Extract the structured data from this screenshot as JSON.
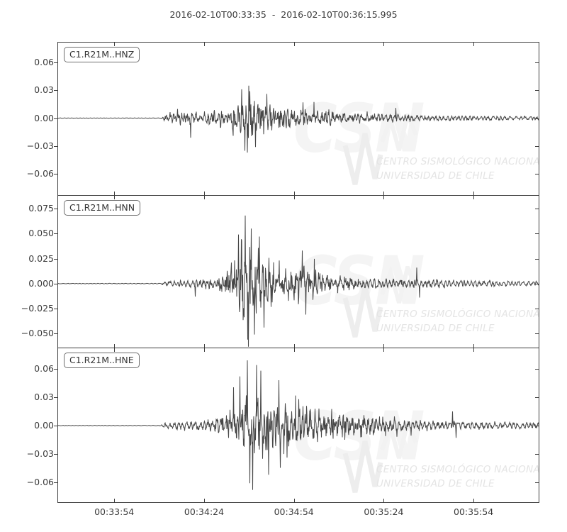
{
  "chart_data": {
    "type": "line",
    "subtype": "seismogram-3-component-waveform",
    "title": "2016-02-10T00:33:35  -  2016-02-10T00:36:15.995",
    "start_time": "2016-02-10T00:33:35",
    "end_time": "2016-02-10T00:36:15.995",
    "duration_s": 161.0,
    "grid": false,
    "trace_color": "#474747",
    "axis_color": "#3d3d3d",
    "x_ticks": [
      {
        "t": 19,
        "label": "00:33:54"
      },
      {
        "t": 49,
        "label": "00:34:24"
      },
      {
        "t": 79,
        "label": "00:34:54"
      },
      {
        "t": 109,
        "label": "00:35:24"
      },
      {
        "t": 139,
        "label": "00:35:54"
      }
    ],
    "watermark": {
      "big_text": "CSN",
      "line1": "CENTRO SISMOLÓGICO NACIONAL",
      "line2": "UNIVERSIDAD DE CHILE"
    },
    "panels": [
      {
        "id": "HNZ",
        "label": "C1.R21M..HNZ",
        "ylim": [
          -0.0826,
          0.0819
        ],
        "yticks": [
          {
            "v": 0.06,
            "label": "0.06"
          },
          {
            "v": 0.03,
            "label": "0.03"
          },
          {
            "v": 0.0,
            "label": "0.00"
          },
          {
            "v": -0.03,
            "label": "−0.03"
          },
          {
            "v": -0.06,
            "label": "−0.06"
          }
        ],
        "seed": 1101,
        "envelope": [
          [
            0,
            0.0004
          ],
          [
            34.5,
            0.0005
          ],
          [
            36,
            0.006
          ],
          [
            39,
            0.0085
          ],
          [
            43,
            0.009
          ],
          [
            47,
            0.0085
          ],
          [
            51,
            0.01
          ],
          [
            54,
            0.012
          ],
          [
            57,
            0.016
          ],
          [
            59,
            0.021
          ],
          [
            61,
            0.028
          ],
          [
            63,
            0.033
          ],
          [
            65,
            0.03
          ],
          [
            67,
            0.027
          ],
          [
            69,
            0.025
          ],
          [
            72,
            0.021
          ],
          [
            75,
            0.017
          ],
          [
            78,
            0.014
          ],
          [
            81,
            0.015
          ],
          [
            84,
            0.012
          ],
          [
            87,
            0.011
          ],
          [
            90,
            0.012
          ],
          [
            93,
            0.01
          ],
          [
            96,
            0.009
          ],
          [
            100,
            0.008
          ],
          [
            105,
            0.007
          ],
          [
            110,
            0.0062
          ],
          [
            115,
            0.0058
          ],
          [
            120,
            0.005
          ],
          [
            128,
            0.0042
          ],
          [
            136,
            0.0038
          ],
          [
            145,
            0.0034
          ],
          [
            153,
            0.0032
          ],
          [
            161,
            0.003
          ]
        ],
        "peaks": [
          {
            "t": 44.5,
            "v": -0.021
          },
          {
            "t": 61.5,
            "v": 0.031
          },
          {
            "t": 62.6,
            "v": -0.035
          },
          {
            "t": 63.4,
            "v": -0.037
          },
          {
            "t": 64.3,
            "v": 0.029
          },
          {
            "t": 66.2,
            "v": -0.031
          },
          {
            "t": 70,
            "v": 0.026
          },
          {
            "t": 82,
            "v": 0.017
          },
          {
            "t": 113,
            "v": 0.011
          }
        ]
      },
      {
        "id": "HNN",
        "label": "C1.R21M..HNN",
        "ylim": [
          -0.064,
          0.0885
        ],
        "yticks": [
          {
            "v": 0.075,
            "label": "0.075"
          },
          {
            "v": 0.05,
            "label": "0.050"
          },
          {
            "v": 0.025,
            "label": "0.025"
          },
          {
            "v": 0.0,
            "label": "0.000"
          },
          {
            "v": -0.025,
            "label": "−0.025"
          },
          {
            "v": -0.05,
            "label": "−0.050"
          }
        ],
        "seed": 2202,
        "envelope": [
          [
            0,
            0.0004
          ],
          [
            34.5,
            0.0005
          ],
          [
            36,
            0.004
          ],
          [
            40,
            0.005
          ],
          [
            44,
            0.0055
          ],
          [
            48,
            0.0065
          ],
          [
            51,
            0.008
          ],
          [
            53,
            0.01
          ],
          [
            55,
            0.014
          ],
          [
            57,
            0.022
          ],
          [
            59,
            0.033
          ],
          [
            61,
            0.045
          ],
          [
            62.5,
            0.053
          ],
          [
            64,
            0.051
          ],
          [
            66,
            0.045
          ],
          [
            68,
            0.04
          ],
          [
            70,
            0.034
          ],
          [
            72,
            0.029
          ],
          [
            74,
            0.026
          ],
          [
            76,
            0.023
          ],
          [
            78,
            0.022
          ],
          [
            80,
            0.024
          ],
          [
            82,
            0.026
          ],
          [
            84,
            0.021
          ],
          [
            86,
            0.018
          ],
          [
            88,
            0.016
          ],
          [
            90,
            0.014
          ],
          [
            93,
            0.012
          ],
          [
            96,
            0.011
          ],
          [
            100,
            0.01
          ],
          [
            104,
            0.0095
          ],
          [
            108,
            0.0085
          ],
          [
            112,
            0.0075
          ],
          [
            116,
            0.007
          ],
          [
            120,
            0.0075
          ],
          [
            124,
            0.007
          ],
          [
            128,
            0.0062
          ],
          [
            134,
            0.0055
          ],
          [
            140,
            0.005
          ],
          [
            147,
            0.0045
          ],
          [
            154,
            0.004
          ],
          [
            161,
            0.0038
          ]
        ],
        "peaks": [
          {
            "t": 46,
            "v": -0.013
          },
          {
            "t": 60.5,
            "v": 0.049
          },
          {
            "t": 62.8,
            "v": 0.068
          },
          {
            "t": 63.6,
            "v": -0.056
          },
          {
            "t": 64.8,
            "v": 0.055
          },
          {
            "t": 65.8,
            "v": -0.051
          },
          {
            "t": 67.5,
            "v": 0.047
          },
          {
            "t": 69,
            "v": -0.044
          },
          {
            "t": 81.8,
            "v": 0.033
          },
          {
            "t": 83,
            "v": -0.031
          },
          {
            "t": 120,
            "v": 0.016
          },
          {
            "t": 121,
            "v": -0.014
          }
        ]
      },
      {
        "id": "HNE",
        "label": "C1.R21M..HNE",
        "ylim": [
          -0.0818,
          0.0825
        ],
        "yticks": [
          {
            "v": 0.06,
            "label": "0.06"
          },
          {
            "v": 0.03,
            "label": "0.03"
          },
          {
            "v": 0.0,
            "label": "0.00"
          },
          {
            "v": -0.03,
            "label": "−0.03"
          },
          {
            "v": -0.06,
            "label": "−0.06"
          }
        ],
        "seed": 3303,
        "envelope": [
          [
            0,
            0.0004
          ],
          [
            34.5,
            0.0005
          ],
          [
            36,
            0.004
          ],
          [
            40,
            0.006
          ],
          [
            44,
            0.007
          ],
          [
            47,
            0.008
          ],
          [
            50,
            0.009
          ],
          [
            53,
            0.012
          ],
          [
            55,
            0.015
          ],
          [
            57,
            0.019
          ],
          [
            59,
            0.026
          ],
          [
            61,
            0.036
          ],
          [
            63,
            0.047
          ],
          [
            64.5,
            0.053
          ],
          [
            66,
            0.052
          ],
          [
            68,
            0.05
          ],
          [
            70,
            0.046
          ],
          [
            72,
            0.042
          ],
          [
            74,
            0.04
          ],
          [
            76,
            0.038
          ],
          [
            78,
            0.034
          ],
          [
            80,
            0.031
          ],
          [
            82,
            0.029
          ],
          [
            84,
            0.027
          ],
          [
            86,
            0.025
          ],
          [
            88,
            0.023
          ],
          [
            90,
            0.021
          ],
          [
            93,
            0.019
          ],
          [
            96,
            0.017
          ],
          [
            99,
            0.015
          ],
          [
            102,
            0.014
          ],
          [
            106,
            0.012
          ],
          [
            110,
            0.011
          ],
          [
            114,
            0.01
          ],
          [
            118,
            0.009
          ],
          [
            123,
            0.008
          ],
          [
            128,
            0.0075
          ],
          [
            134,
            0.007
          ],
          [
            140,
            0.0065
          ],
          [
            147,
            0.006
          ],
          [
            154,
            0.0055
          ],
          [
            161,
            0.005
          ]
        ],
        "peaks": [
          {
            "t": 61,
            "v": 0.052
          },
          {
            "t": 63.5,
            "v": 0.069
          },
          {
            "t": 64.3,
            "v": -0.061
          },
          {
            "t": 65.2,
            "v": -0.068
          },
          {
            "t": 66.5,
            "v": 0.064
          },
          {
            "t": 68,
            "v": 0.058
          },
          {
            "t": 70.5,
            "v": -0.052
          },
          {
            "t": 74,
            "v": 0.048
          },
          {
            "t": 132,
            "v": 0.015
          },
          {
            "t": 133.2,
            "v": -0.013
          }
        ]
      }
    ]
  }
}
